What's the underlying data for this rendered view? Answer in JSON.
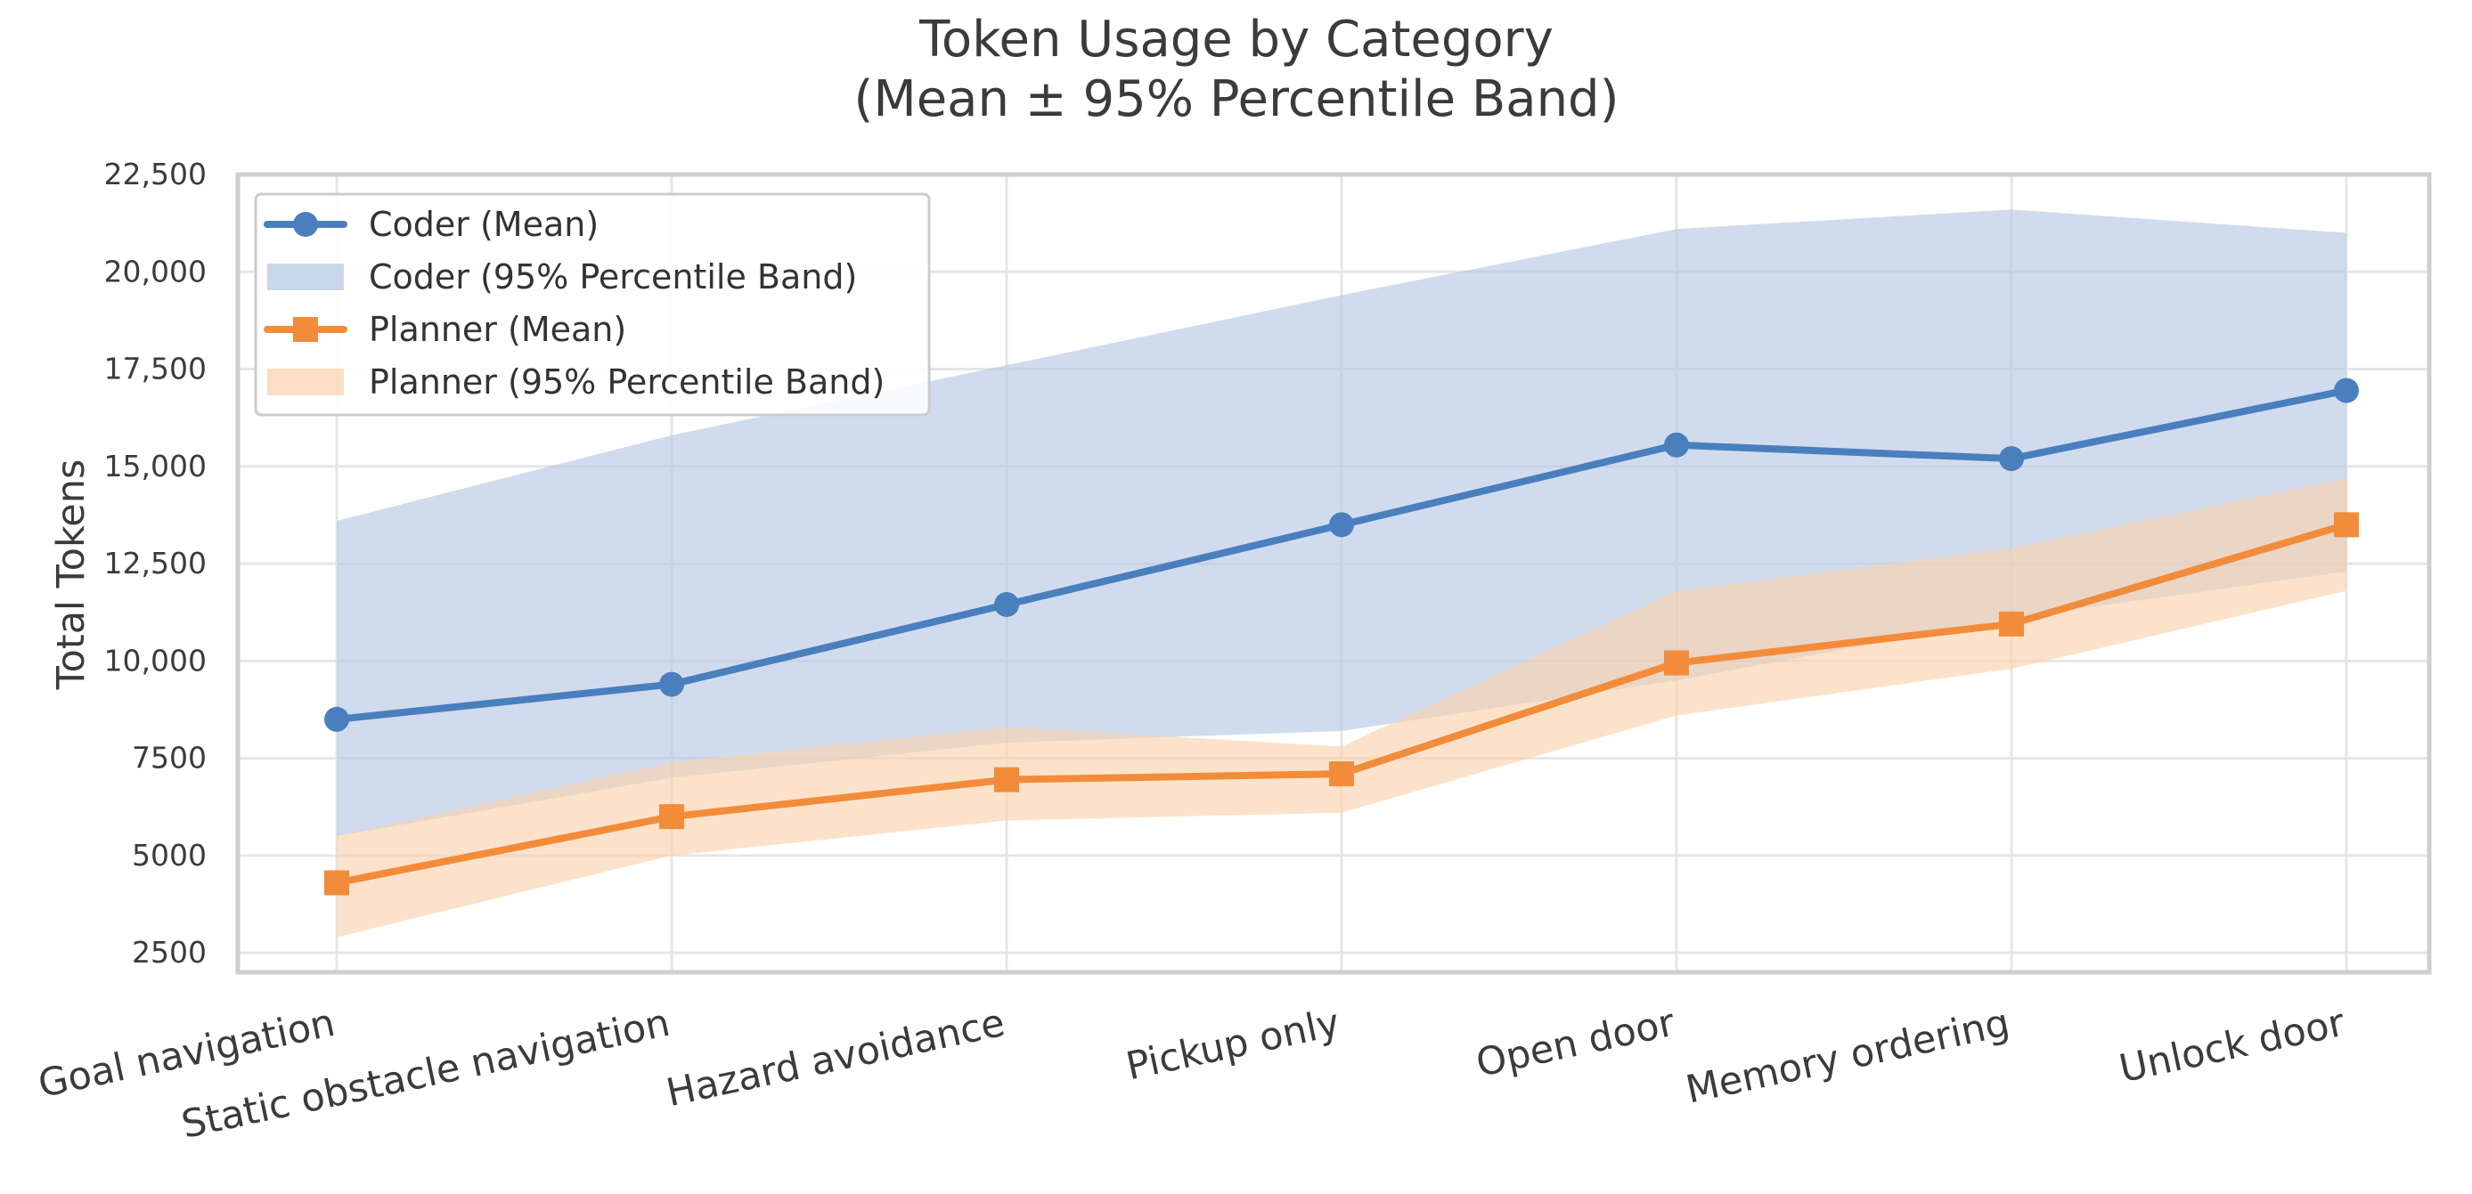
{
  "chart_data": {
    "type": "line",
    "title_lines": [
      "Token Usage by Category",
      "(Mean ± 95% Percentile Band)"
    ],
    "xlabel": "",
    "ylabel": "Total Tokens",
    "categories": [
      "Goal navigation",
      "Static obstacle navigation",
      "Hazard avoidance",
      "Pickup only",
      "Open door",
      "Memory ordering",
      "Unlock door"
    ],
    "ylim": [
      2000,
      22500
    ],
    "yticks": [
      2500,
      5000,
      7500,
      10000,
      12500,
      15000,
      17500,
      20000,
      22500
    ],
    "ytick_labels": [
      "2500",
      "5000",
      "7500",
      "10,000",
      "12,500",
      "15,000",
      "17,500",
      "20,000",
      "22,500"
    ],
    "grid": true,
    "legend_position": "upper-left",
    "series": [
      {
        "name": "Coder (Mean)",
        "band_name": "Coder (95% Percentile Band)",
        "color": "#4a7fbd",
        "band_color": "#b3c6e3",
        "marker": "circle",
        "values": [
          8500,
          9400,
          11450,
          13500,
          15550,
          15200,
          16950
        ],
        "lower": [
          5500,
          7000,
          7900,
          8200,
          9500,
          11100,
          12300
        ],
        "upper": [
          13600,
          15800,
          17600,
          19400,
          21100,
          21600,
          21000
        ]
      },
      {
        "name": "Planner (Mean)",
        "band_name": "Planner (95% Percentile Band)",
        "color": "#f28c3a",
        "band_color": "#fbd1ab",
        "marker": "square",
        "values": [
          4300,
          6000,
          6950,
          7100,
          9950,
          10950,
          13500
        ],
        "lower": [
          2900,
          5000,
          5900,
          6100,
          8600,
          9800,
          11800
        ],
        "upper": [
          5500,
          7400,
          8300,
          7800,
          11800,
          12900,
          14700
        ]
      }
    ]
  }
}
